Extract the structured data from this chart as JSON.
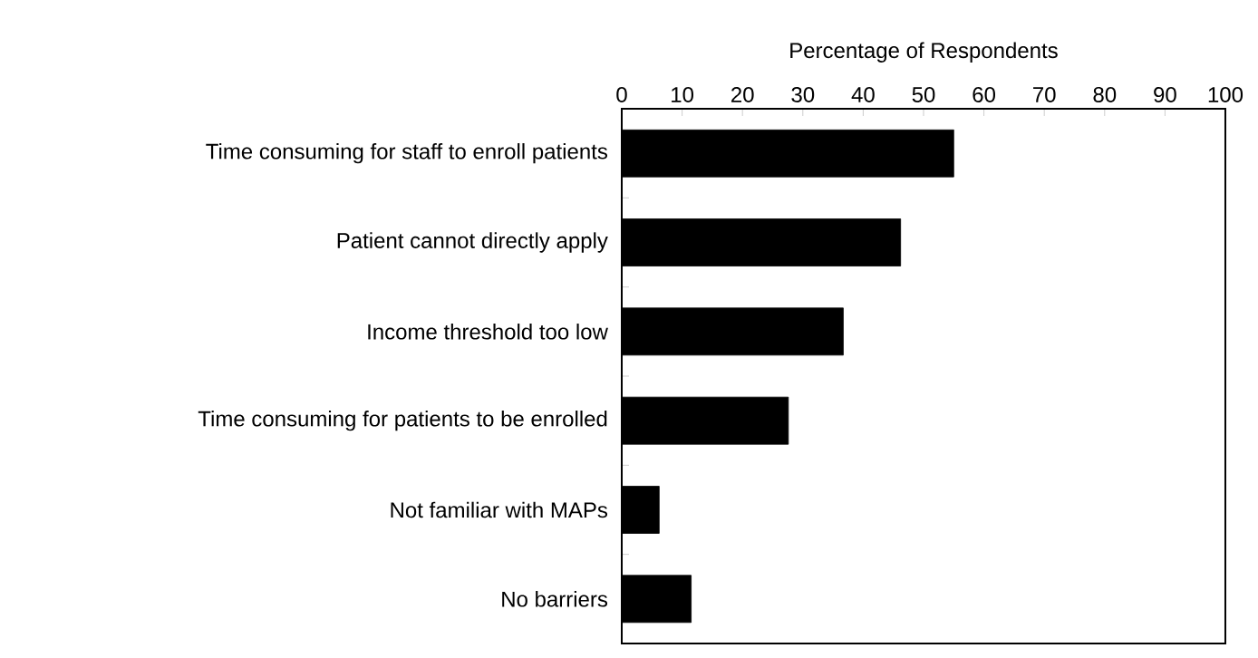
{
  "chart_data": {
    "type": "bar",
    "orientation": "horizontal",
    "xlabel": "Percentage of Respondents",
    "categories": [
      "Time consuming for staff to enroll patients",
      "Patient cannot directly apply",
      "Income threshold too low",
      "Time consuming for patients to be enrolled",
      "Not familiar with MAPs",
      "No barriers"
    ],
    "values": [
      55.0,
      46.2,
      36.7,
      27.6,
      6.2,
      11.5
    ],
    "color": "#000000",
    "xlim": [
      0,
      100
    ],
    "xticks": [
      0,
      10,
      20,
      30,
      40,
      50,
      60,
      70,
      80,
      90,
      100
    ]
  }
}
